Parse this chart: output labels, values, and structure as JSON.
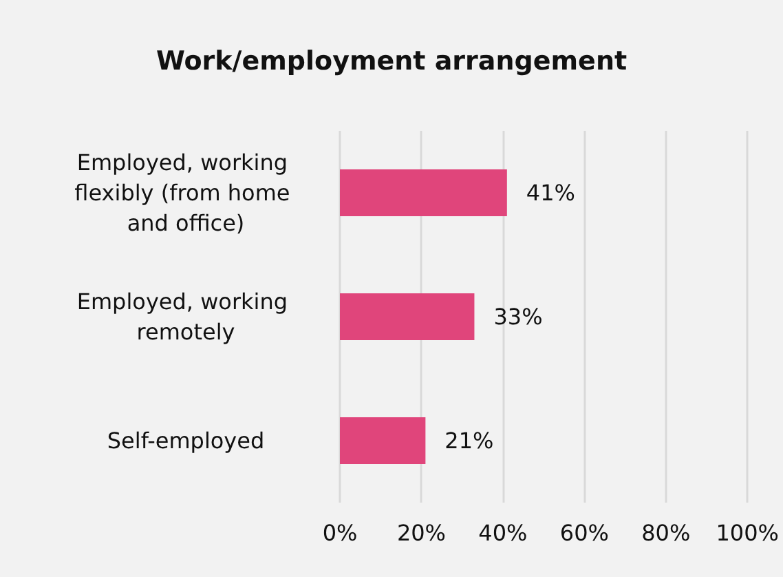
{
  "chart_data": {
    "type": "bar",
    "orientation": "horizontal",
    "title": "Work/employment arrangement",
    "categories": [
      "Employed, working flexibly (from home and office)",
      "Employed, working remotely",
      "Self-employed"
    ],
    "values": [
      41,
      33,
      21
    ],
    "color": "#e0457b",
    "value_labels": [
      "41%",
      "33%",
      "21%"
    ],
    "xlim": [
      0,
      100
    ],
    "xticks": [
      {
        "value": 0,
        "label": "0%"
      },
      {
        "value": 20,
        "label": "20%"
      },
      {
        "value": 40,
        "label": "40%"
      },
      {
        "value": 60,
        "label": "60%"
      },
      {
        "value": 80,
        "label": "80%"
      },
      {
        "value": 100,
        "label": "100%"
      }
    ],
    "grid": "x"
  }
}
